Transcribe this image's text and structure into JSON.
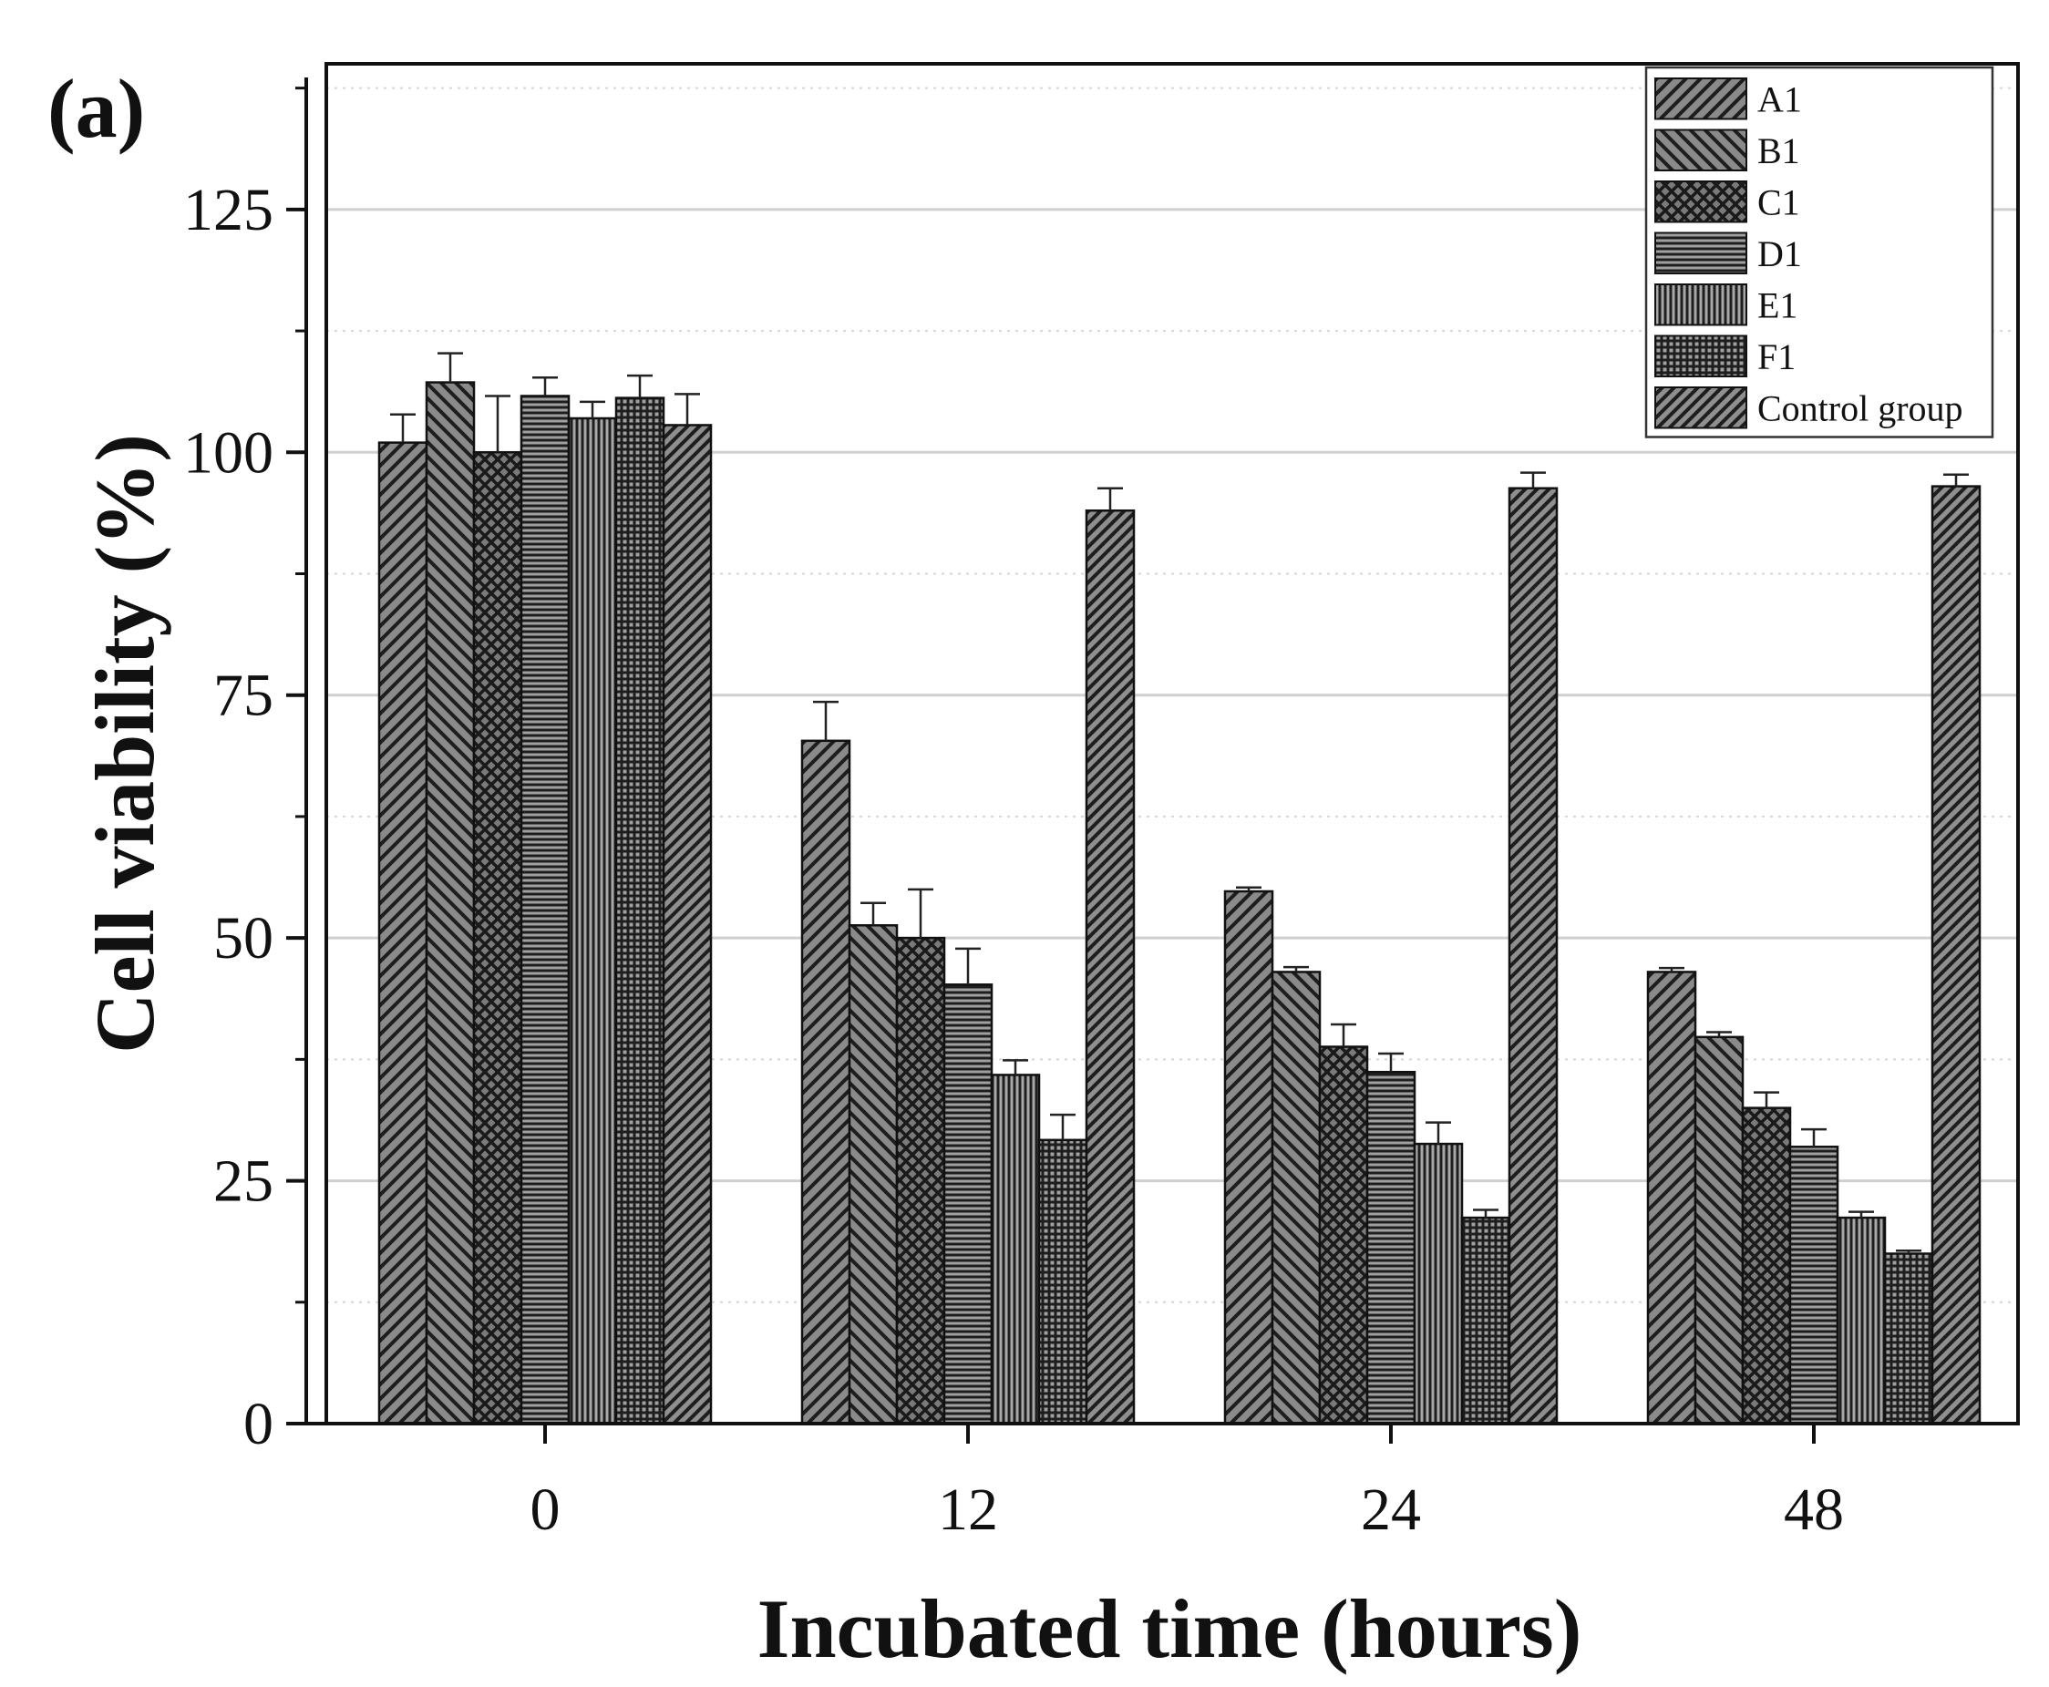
{
  "chart_data": {
    "type": "bar",
    "panel_label": "(a)",
    "title": "",
    "xlabel": "Incubated time (hours)",
    "ylabel": "Cell viability (%)",
    "categories": [
      "0",
      "12",
      "24",
      "48"
    ],
    "ylim": [
      0,
      140
    ],
    "yticks": [
      0,
      25,
      50,
      75,
      100,
      125
    ],
    "ytick_labels": [
      "0",
      "25",
      "50",
      "75",
      "100",
      "125"
    ],
    "grid": true,
    "legend_position": "top-right",
    "series": [
      {
        "name": "A1",
        "pattern": "diag-right",
        "values": [
          101,
          70.3,
          54.8,
          46.5
        ],
        "errors": [
          2.9,
          4.0,
          0.4,
          0.4
        ]
      },
      {
        "name": "B1",
        "pattern": "diag-left",
        "values": [
          107.2,
          51.3,
          46.5,
          39.8
        ],
        "errors": [
          3.0,
          2.3,
          0.5,
          0.5
        ]
      },
      {
        "name": "C1",
        "pattern": "crosshatch",
        "values": [
          100,
          50,
          38.8,
          32.5
        ],
        "errors": [
          5.8,
          5.0,
          2.3,
          1.6
        ]
      },
      {
        "name": "D1",
        "pattern": "horizontal",
        "values": [
          105.8,
          45.2,
          36.2,
          28.5
        ],
        "errors": [
          1.9,
          3.7,
          1.9,
          1.8
        ]
      },
      {
        "name": "E1",
        "pattern": "vertical",
        "values": [
          103.5,
          35.9,
          28.8,
          21.2
        ],
        "errors": [
          1.7,
          1.5,
          2.2,
          0.6
        ]
      },
      {
        "name": "F1",
        "pattern": "grid",
        "values": [
          105.6,
          29.2,
          21.2,
          17.5
        ],
        "errors": [
          2.3,
          2.6,
          0.8,
          0.3
        ]
      },
      {
        "name": "Control group",
        "pattern": "diag-right-dense",
        "values": [
          102.8,
          94,
          96.3,
          96.5
        ],
        "errors": [
          3.2,
          2.3,
          1.6,
          1.2
        ]
      }
    ]
  }
}
